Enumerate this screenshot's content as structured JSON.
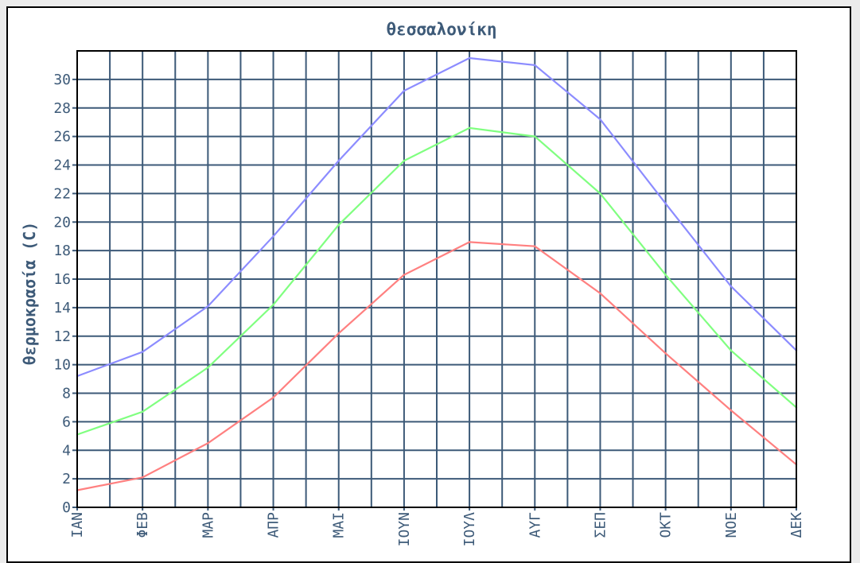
{
  "colors": {
    "grid": "#3d5a78",
    "text": "#3d5a78",
    "series_max": "#8c8cff",
    "series_mean": "#80ff80",
    "series_min": "#ff8080"
  },
  "chart_data": {
    "type": "line",
    "title": "θεσσαλονίκη",
    "ylabel": "θερμοκρασία (C)",
    "xlabel": "",
    "categories": [
      "ΙΑΝ",
      "ΦΕΒ",
      "ΜΑΡ",
      "ΑΠΡ",
      "ΜΑΙ",
      "ΙΟΥΝ",
      "ΙΟΥΛ",
      "ΑΥΓ",
      "ΣΕΠ",
      "ΟΚΤ",
      "ΝΟΕ",
      "ΔΕΚ"
    ],
    "ylim": [
      0,
      32
    ],
    "yticks": [
      0,
      2,
      4,
      6,
      8,
      10,
      12,
      14,
      16,
      18,
      20,
      22,
      24,
      26,
      28,
      30
    ],
    "grid": true,
    "legend": "none",
    "series": [
      {
        "values": [
          9.2,
          10.9,
          14.1,
          19.0,
          24.3,
          29.2,
          31.5,
          31.0,
          27.2,
          21.3,
          15.5,
          11.0
        ]
      },
      {
        "values": [
          5.1,
          6.7,
          9.8,
          14.2,
          19.8,
          24.3,
          26.6,
          26.0,
          22.0,
          16.3,
          11.0,
          7.0
        ]
      },
      {
        "values": [
          1.2,
          2.1,
          4.5,
          7.7,
          12.2,
          16.3,
          18.6,
          18.3,
          15.0,
          10.8,
          6.8,
          3.0
        ]
      }
    ]
  }
}
